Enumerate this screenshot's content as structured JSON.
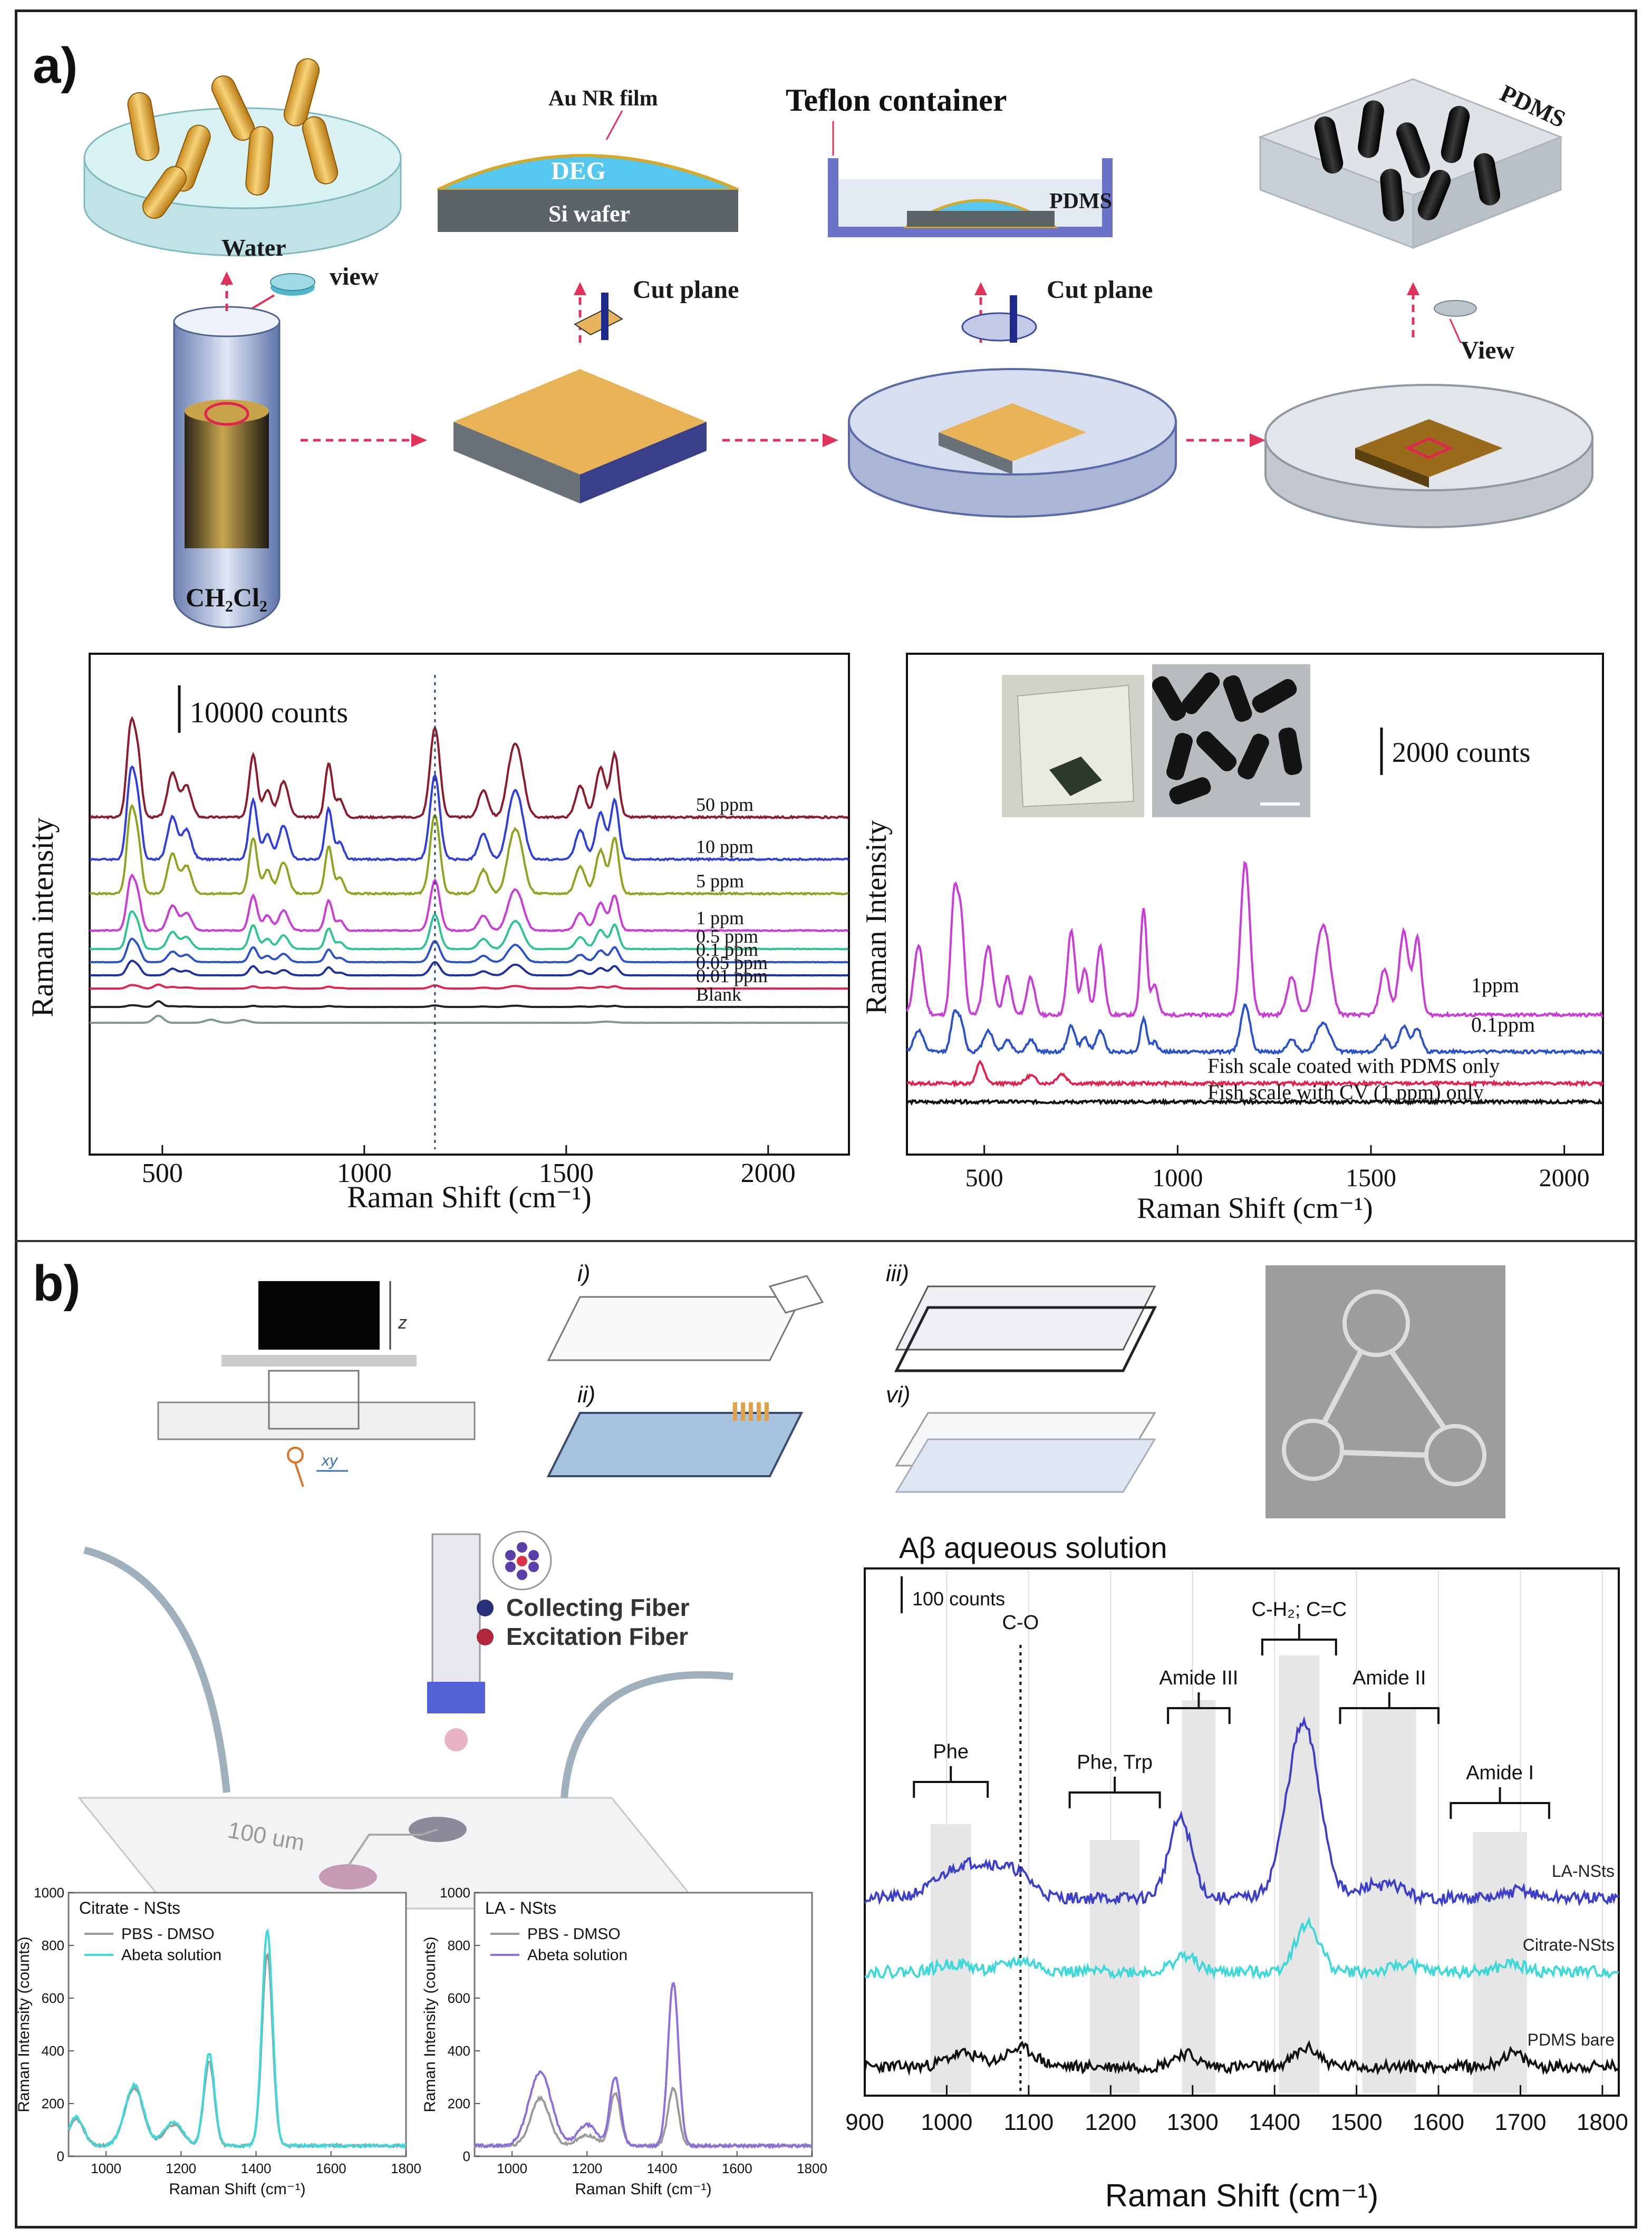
{
  "panel_a": {
    "label": "a)",
    "schematic": {
      "water_label": "Water",
      "view_label": "view",
      "tube_label": "CH₂Cl₂",
      "au_film_label": "Au NR film",
      "deg_label": "DEG",
      "si_label": "Si wafer",
      "cut_plane_1": "Cut plane",
      "teflon_label": "Teflon container",
      "pdms_label": "PDMS",
      "cut_plane_2": "Cut plane",
      "pdms_box_label": "PDMS",
      "view_label_2": "View"
    }
  },
  "panel_b": {
    "label": "b)",
    "stage_labels": {
      "z": "z",
      "xy": "xy"
    },
    "steps": [
      "i)",
      "ii)",
      "iii)",
      "vi)"
    ],
    "fiber_legend": {
      "collecting": "Collecting Fiber",
      "excitation": "Excitation Fiber"
    },
    "chip_scale": "100 um"
  },
  "chart_data": [
    {
      "type": "line",
      "title": "",
      "scale_bar": "10000 counts",
      "xlabel": "Raman Shift (cm⁻¹)",
      "ylabel": "Raman intensity",
      "xlim": [
        320,
        2200
      ],
      "xticks": [
        500,
        1000,
        1500,
        2000
      ],
      "series": [
        {
          "name": "50 ppm",
          "color": "#8b1a2b"
        },
        {
          "name": "10 ppm",
          "color": "#2f3fd8"
        },
        {
          "name": "5 ppm",
          "color": "#8aa620"
        },
        {
          "name": "1 ppm",
          "color": "#c93cd6"
        },
        {
          "name": "0.5 ppm",
          "color": "#2fc48f"
        },
        {
          "name": "0.1 ppm",
          "color": "#2b53c9"
        },
        {
          "name": "0.05 ppm",
          "color": "#1e2f9e"
        },
        {
          "name": "0.01 ppm",
          "color": "#e0244f"
        },
        {
          "name": "Blank",
          "color": "#222222"
        },
        {
          "name": "",
          "color": "#7f9a8c"
        }
      ],
      "peaks": [
        422,
        440,
        525,
        560,
        725,
        760,
        800,
        912,
        940,
        1175,
        1295,
        1365,
        1385,
        1535,
        1585,
        1620
      ]
    },
    {
      "type": "line",
      "title": "",
      "scale_bar": "2000 counts",
      "xlabel": "Raman Shift (cm⁻¹)",
      "ylabel": "Raman Intensity",
      "xlim": [
        300,
        2100
      ],
      "xticks": [
        500,
        1000,
        1500,
        2000
      ],
      "series": [
        {
          "name": "1ppm",
          "color": "#c93cd6"
        },
        {
          "name": "0.1ppm",
          "color": "#2b53c9"
        },
        {
          "name": "Fish scale coated with PDMS only",
          "color": "#e0244f"
        },
        {
          "name": "Fish scale with CV (1 ppm) only",
          "color": "#111111"
        }
      ]
    },
    {
      "type": "line",
      "title": "Aβ aqueous solution",
      "scale_bar": "100 counts",
      "xlabel": "Raman Shift (cm⁻¹)",
      "xlim": [
        900,
        1820
      ],
      "xticks": [
        900,
        1000,
        1100,
        1200,
        1300,
        1400,
        1500,
        1600,
        1700,
        1800
      ],
      "series": [
        {
          "name": "LA-NSts",
          "color": "#3b3fc9"
        },
        {
          "name": "Citrate-NSts",
          "color": "#3fd8d8"
        },
        {
          "name": "PDMS bare",
          "color": "#111111"
        }
      ],
      "bands": [
        {
          "label": "Phe",
          "from": 960,
          "to": 1050
        },
        {
          "label": "C-O",
          "from": 1090,
          "to": 1090
        },
        {
          "label": "Phe, Trp",
          "from": 1150,
          "to": 1260
        },
        {
          "label": "Amide III",
          "from": 1270,
          "to": 1345
        },
        {
          "label": "C-H₂; C=C",
          "from": 1385,
          "to": 1475
        },
        {
          "label": "Amide II",
          "from": 1480,
          "to": 1600
        },
        {
          "label": "Amide I",
          "from": 1615,
          "to": 1735
        }
      ]
    },
    {
      "type": "line",
      "title": "Citrate - NSts",
      "xlabel": "Raman Shift (cm⁻¹)",
      "ylabel": "Raman Intensity (counts)",
      "xlim": [
        900,
        1800
      ],
      "ylim": [
        0,
        1000
      ],
      "yticks": [
        0,
        200,
        400,
        600,
        800,
        1000
      ],
      "xticks": [
        1000,
        1200,
        1400,
        1600,
        1800
      ],
      "series": [
        {
          "name": "PBS - DMSO",
          "color": "#999999"
        },
        {
          "name": "Abeta solution",
          "color": "#3fd8d8"
        }
      ]
    },
    {
      "type": "line",
      "title": "LA - NSts",
      "xlabel": "Raman Shift (cm⁻¹)",
      "ylabel": "Raman Intensity (counts)",
      "xlim": [
        900,
        1800
      ],
      "ylim": [
        0,
        1000
      ],
      "yticks": [
        0,
        200,
        400,
        600,
        800,
        1000
      ],
      "xticks": [
        1000,
        1200,
        1400,
        1600,
        1800
      ],
      "series": [
        {
          "name": "PBS - DMSO",
          "color": "#999999"
        },
        {
          "name": "Abeta solution",
          "color": "#8c6fd8"
        }
      ]
    }
  ]
}
